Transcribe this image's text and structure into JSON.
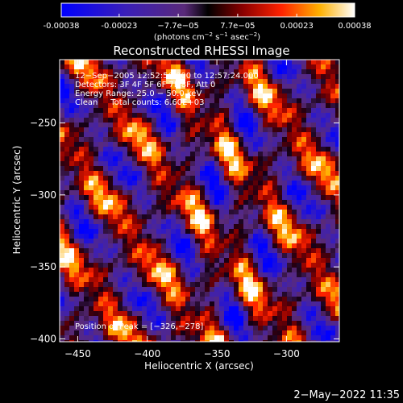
{
  "colorbar": {
    "tick_labels": [
      "-0.00038",
      "-0.00023",
      "−7.7e−05",
      "7.7e−05",
      "0.00023",
      "0.00038"
    ],
    "tick_values": [
      -0.00038,
      -0.00023,
      -7.7e-05,
      7.7e-05,
      0.00023,
      0.00038
    ],
    "range": [
      -0.00038,
      0.00038
    ],
    "units_main": "(photons cm",
    "units_exp1": "−2",
    "units_mid1": " s",
    "units_exp2": "−1",
    "units_mid2": " asec",
    "units_exp3": "−2",
    "units_end": ")",
    "colors": [
      "#0000ff",
      "#3f1fb0",
      "#6a2fa0",
      "#000000",
      "#8b0000",
      "#ff2a00",
      "#ffb000",
      "#ffffff"
    ]
  },
  "chart_data": {
    "type": "heatmap",
    "title": "Reconstructed RHESSI Image",
    "xlabel": "Heliocentric X (arcsec)",
    "ylabel": "Heliocentric Y (arcsec)",
    "xlim": [
      -463,
      -262
    ],
    "ylim": [
      -402,
      -206
    ],
    "xticks": [
      -450,
      -400,
      -350,
      -300
    ],
    "xtick_labels": [
      "−450",
      "−400",
      "−350",
      "−300"
    ],
    "yticks": [
      -400,
      -350,
      -300,
      -250
    ],
    "ytick_labels": [
      "−400",
      "−350",
      "−300",
      "−250"
    ],
    "pattern": "diagonal streaks of positive (red/yellow) and negative (blue/purple) flux",
    "annotations": {
      "time": "12−Sep−2005 12:52:56.000 to 12:57:24.000",
      "detectors": "Detectors: 3F 4F 5F 6F 7F 8F, Att 0",
      "energy": "Energy Range: 25.0 − 50.0 keV",
      "clean": "Clean     Total counts: 6.60E+03",
      "peak": "Position of Peak = [−326,−278]"
    }
  },
  "footer": {
    "timestamp": "2−May−2022 11:35"
  }
}
